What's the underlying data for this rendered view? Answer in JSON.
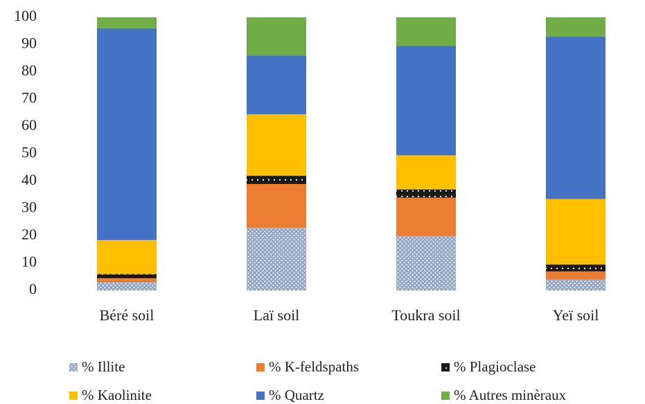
{
  "chart_data": {
    "type": "stacked-bar",
    "categories": [
      "Béré soil",
      "Laï soil",
      "Toukra soil",
      "Yeï soil"
    ],
    "series": [
      {
        "name": "% Illite",
        "color": "#8fa3c0",
        "pattern": "dots",
        "values": [
          3,
          23,
          20,
          4
        ]
      },
      {
        "name": "% K-feldspaths",
        "color": "#ed7d31",
        "values": [
          1.5,
          16,
          14,
          3
        ]
      },
      {
        "name": "% Plagioclase",
        "color": "#1a1a1a",
        "pattern": "dots",
        "values": [
          1.5,
          3,
          3,
          2.5
        ]
      },
      {
        "name": "% Kaolinite",
        "color": "#ffc000",
        "values": [
          12.5,
          22.5,
          12.5,
          24
        ]
      },
      {
        "name": "% Quartz",
        "color": "#4472c4",
        "values": [
          77.5,
          21.5,
          40,
          59.5
        ]
      },
      {
        "name": "% Autres minèraux",
        "color": "#70ad47",
        "values": [
          4,
          14,
          10.5,
          7
        ]
      }
    ],
    "ylim": [
      0,
      100
    ],
    "yticks": [
      0,
      10,
      20,
      30,
      40,
      50,
      60,
      70,
      80,
      90,
      100
    ],
    "grid": false
  }
}
